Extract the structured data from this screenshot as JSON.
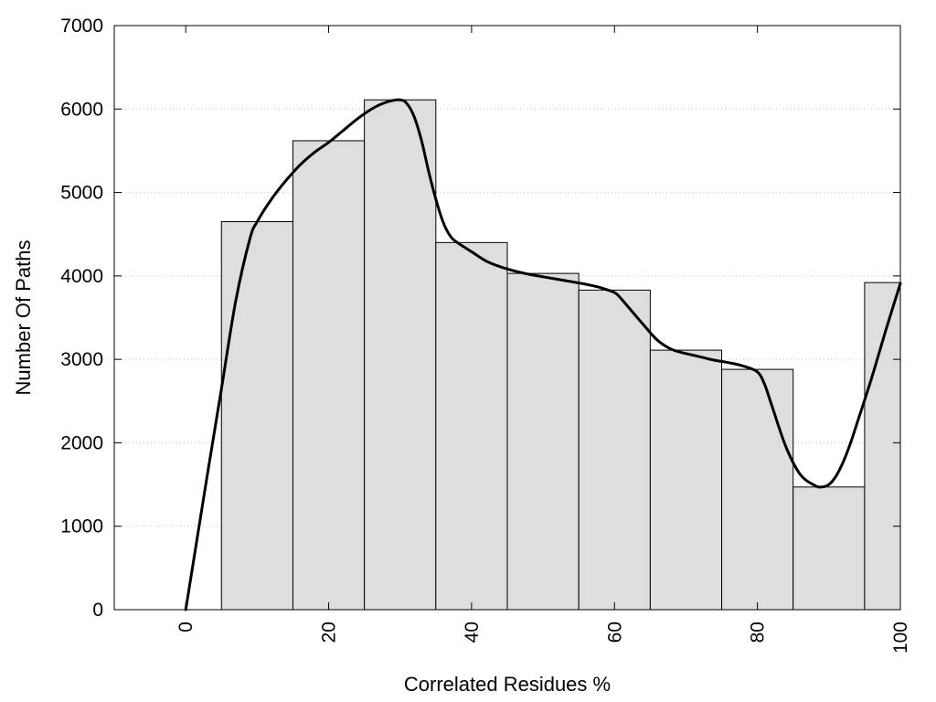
{
  "chart_data": {
    "type": "bar",
    "xlabel": "Correlated Residues %",
    "ylabel": "Number Of Paths",
    "xlim": [
      -10,
      100
    ],
    "ylim": [
      0,
      7000
    ],
    "x_ticks": [
      0,
      20,
      40,
      60,
      80,
      100
    ],
    "y_ticks": [
      0,
      1000,
      2000,
      3000,
      4000,
      5000,
      6000,
      7000
    ],
    "grid": "horizontal-dotted",
    "bar_width": 10,
    "bars": [
      {
        "x": 10,
        "value": 4650
      },
      {
        "x": 20,
        "value": 5620
      },
      {
        "x": 30,
        "value": 6110
      },
      {
        "x": 40,
        "value": 4400
      },
      {
        "x": 50,
        "value": 4030
      },
      {
        "x": 60,
        "value": 3830
      },
      {
        "x": 70,
        "value": 3110
      },
      {
        "x": 80,
        "value": 2880
      },
      {
        "x": 90,
        "value": 1470
      },
      {
        "x": 100,
        "value": 3920
      }
    ],
    "curve": {
      "type": "line",
      "x": [
        0,
        3,
        5,
        7,
        9,
        10,
        12,
        14,
        16,
        18,
        20,
        22,
        24,
        26,
        28,
        30,
        31,
        32,
        33,
        34,
        35,
        36,
        37,
        38,
        40,
        42,
        44,
        46,
        48,
        50,
        52,
        54,
        56,
        58,
        60,
        61,
        62,
        64,
        66,
        68,
        70,
        72,
        74,
        76,
        78,
        80,
        81,
        82,
        84,
        86,
        88,
        89,
        90,
        91,
        92,
        93,
        94,
        96,
        98,
        100
      ],
      "y": [
        0,
        1600,
        2650,
        3700,
        4450,
        4650,
        4920,
        5140,
        5330,
        5480,
        5600,
        5740,
        5880,
        6000,
        6080,
        6110,
        6060,
        5900,
        5620,
        5250,
        4920,
        4650,
        4480,
        4400,
        4290,
        4180,
        4110,
        4060,
        4020,
        3990,
        3960,
        3930,
        3900,
        3860,
        3800,
        3720,
        3620,
        3420,
        3230,
        3120,
        3070,
        3030,
        2990,
        2960,
        2920,
        2850,
        2700,
        2450,
        1950,
        1620,
        1490,
        1470,
        1500,
        1600,
        1770,
        1990,
        2250,
        2780,
        3360,
        3910
      ]
    }
  }
}
